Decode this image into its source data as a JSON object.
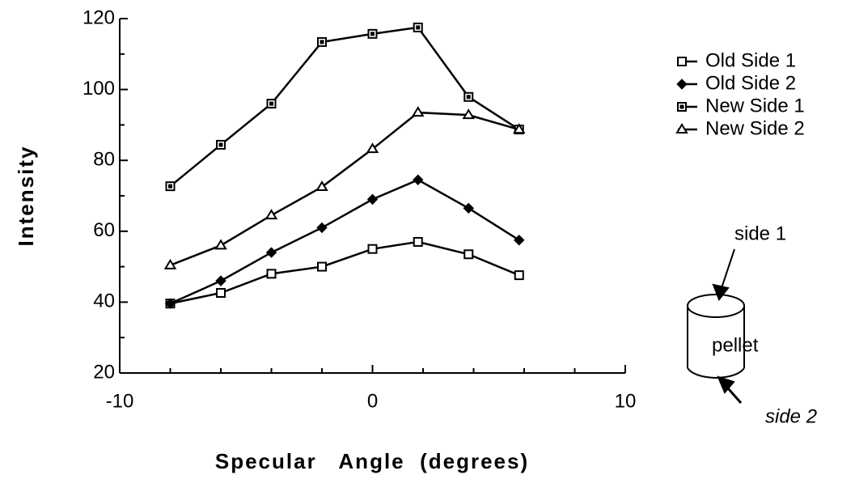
{
  "chart_data": {
    "type": "line",
    "x_label": "Specular   Angle  (degrees)",
    "y_label": "Intensity",
    "x": [
      -8,
      -6,
      -4,
      -2,
      0,
      1.8,
      3.8,
      5.8
    ],
    "series": [
      {
        "name": "Old Side 1",
        "color": "#000000",
        "marker": "open-square",
        "values": [
          39.6,
          42.6,
          48,
          50,
          55,
          57,
          53.5,
          47.6
        ]
      },
      {
        "name": "Old Side 2",
        "color": "#000000",
        "marker": "filled-diamond",
        "values": [
          39.6,
          46,
          54,
          61,
          69,
          74.5,
          66.5,
          57.5
        ]
      },
      {
        "name": "New Side 1",
        "color": "#000000",
        "marker": "dotted-square",
        "values": [
          72.7,
          84.4,
          96,
          113.4,
          115.7,
          117.5,
          97.9,
          88.7
        ]
      },
      {
        "name": "New Side 2",
        "color": "#000000",
        "marker": "open-triangle",
        "values": [
          50.4,
          56,
          64.5,
          72.5,
          83.2,
          93.5,
          92.8,
          88.7
        ]
      }
    ],
    "xlim": [
      -10,
      10
    ],
    "xticks": [
      -10,
      0,
      10
    ],
    "ylim": [
      20,
      120
    ],
    "yticks": [
      20,
      40,
      60,
      80,
      100,
      120
    ],
    "legend": "right",
    "annotations": {
      "side1": "side 1",
      "pellet": "pellet",
      "side2": "side 2"
    }
  }
}
